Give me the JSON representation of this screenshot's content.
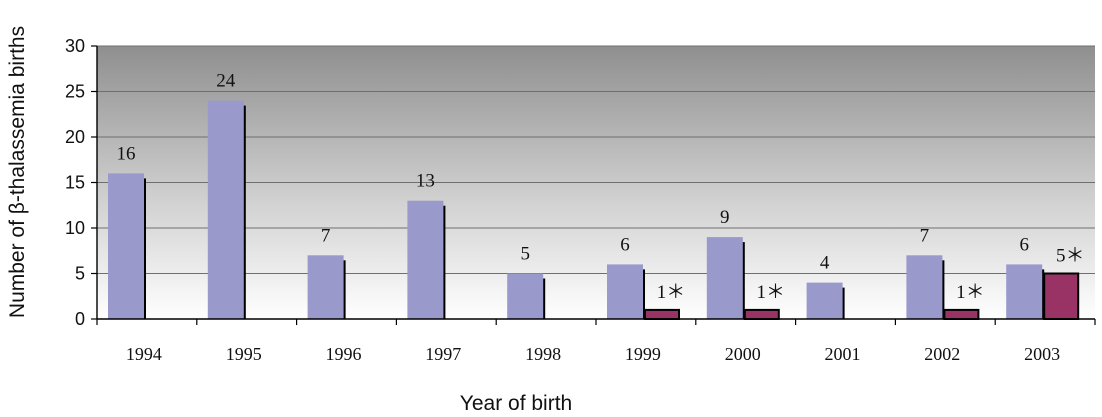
{
  "chart_data": {
    "type": "bar",
    "title": "",
    "xlabel": "Year of birth",
    "ylabel": "Number of β-thalassemia births",
    "ylim": [
      0,
      30
    ],
    "yticks": [
      0,
      5,
      10,
      15,
      20,
      25,
      30
    ],
    "grid": true,
    "categories": [
      "1994",
      "1995",
      "1996",
      "1997",
      "1998",
      "1999",
      "2000",
      "2001",
      "2002",
      "2003"
    ],
    "series": [
      {
        "values": [
          16,
          24,
          7,
          13,
          5,
          6,
          9,
          4,
          7,
          6
        ],
        "labels": [
          "16",
          "24",
          "7",
          "13",
          "5",
          "6",
          "9",
          "4",
          "7",
          "6"
        ],
        "color": "#9999cc"
      },
      {
        "values": [
          null,
          null,
          null,
          null,
          null,
          1,
          1,
          null,
          1,
          5
        ],
        "labels": [
          "",
          "",
          "",
          "",
          "",
          "1＊",
          "1＊",
          "",
          "1＊",
          "5＊"
        ],
        "color": "#993366"
      }
    ]
  }
}
